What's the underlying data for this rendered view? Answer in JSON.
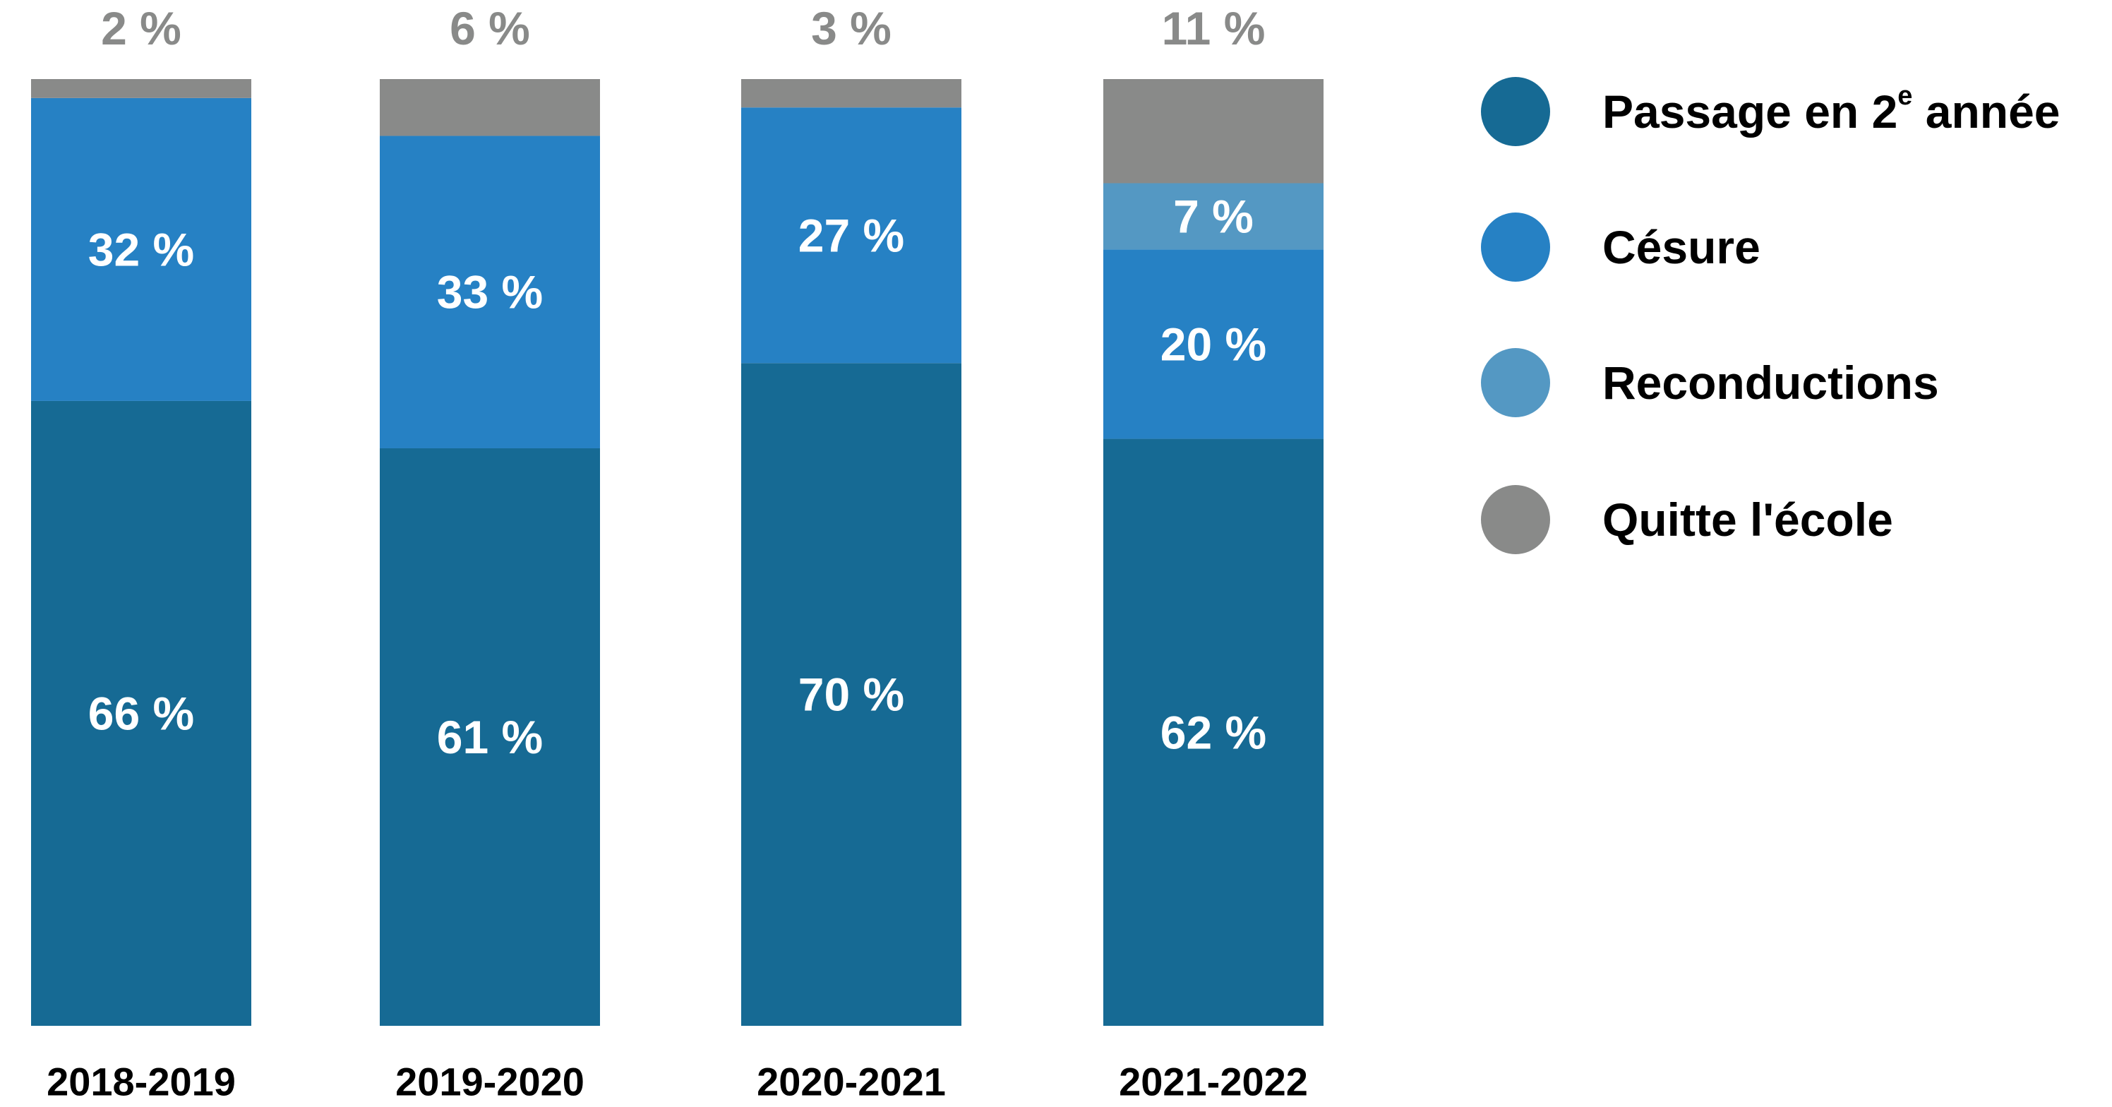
{
  "chart_data": {
    "type": "bar",
    "stacked": true,
    "categories": [
      "2018-2019",
      "2019-2020",
      "2020-2021",
      "2021-2022"
    ],
    "ylim": [
      0,
      100
    ],
    "grid": false,
    "legend_position": "right",
    "series": [
      {
        "name": "Passage en 2e année",
        "legend_parts": [
          "Passage en 2",
          "e",
          " année"
        ],
        "color": "#166a94",
        "values": [
          66,
          61,
          70,
          62
        ],
        "labels": [
          "66 %",
          "61 %",
          "70 %",
          "62 %"
        ],
        "label_position": "inside"
      },
      {
        "name": "Césure",
        "color": "#2681c4",
        "values": [
          32,
          33,
          27,
          20
        ],
        "labels": [
          "32 %",
          "33 %",
          "27 %",
          "20 %"
        ],
        "label_position": "inside"
      },
      {
        "name": "Reconductions",
        "color": "#5498c3",
        "values": [
          0,
          0,
          0,
          7
        ],
        "labels": [
          "",
          "",
          "",
          "7 %"
        ],
        "label_position": "inside"
      },
      {
        "name": "Quitte l'école",
        "color": "#898a89",
        "values": [
          2,
          6,
          3,
          11
        ],
        "labels": [
          "2 %",
          "6 %",
          "3 %",
          "11 %"
        ],
        "label_position": "above"
      }
    ]
  }
}
